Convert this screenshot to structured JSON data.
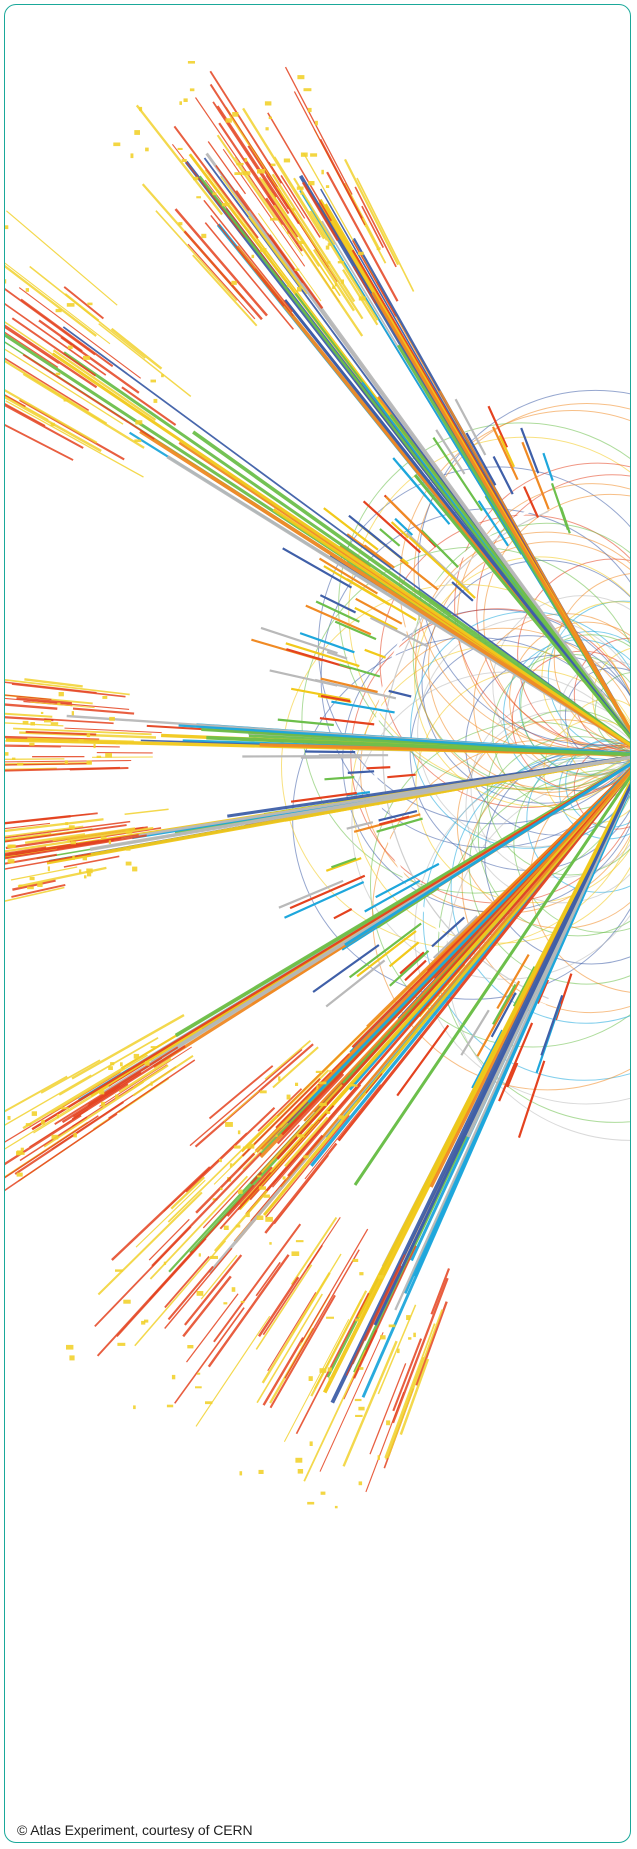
{
  "figure": {
    "credit": "© Atlas Experiment, courtesy of CERN",
    "frame_color": "#1aa89a",
    "track_colors": [
      "#e4421f",
      "#f2c91a",
      "#6cbf4b",
      "#1ea7dc",
      "#3f5fa8",
      "#b9b9b9",
      "#f08a24"
    ],
    "shower_color": "#f2d22e"
  }
}
